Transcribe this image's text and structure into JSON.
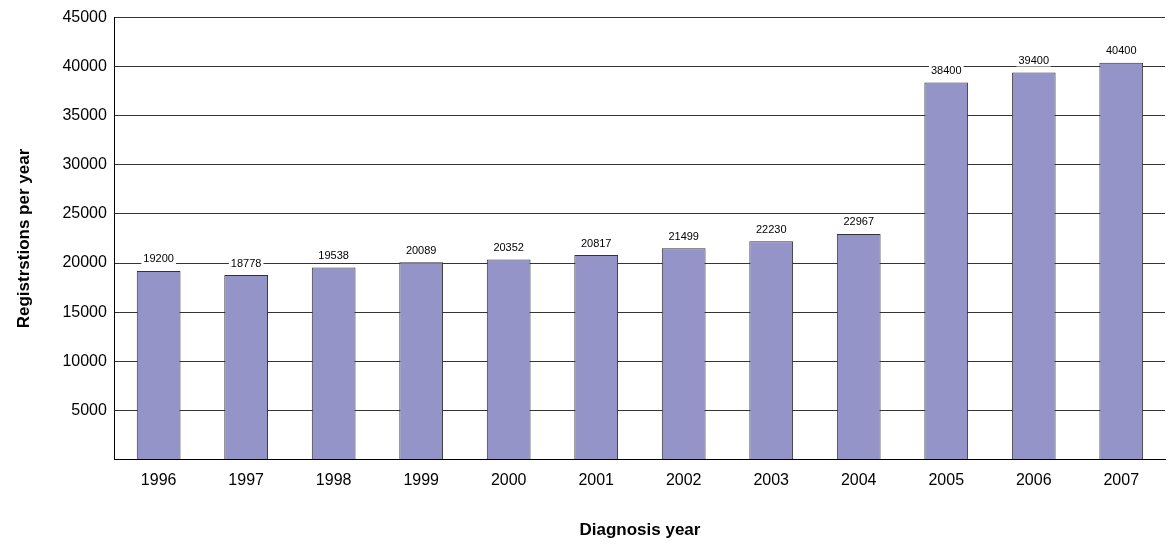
{
  "chart_data": {
    "type": "bar",
    "xlabel": "Diagnosis year",
    "ylabel": "Registrstions per year",
    "categories": [
      "1996",
      "1997",
      "1998",
      "1999",
      "2000",
      "2001",
      "2002",
      "2003",
      "2004",
      "2005",
      "2006",
      "2007"
    ],
    "values": [
      19200,
      18778,
      19538,
      20089,
      20352,
      20817,
      21499,
      22230,
      22967,
      38400,
      39400,
      40400
    ],
    "color": "#9494c8",
    "ylim": [
      0,
      45000
    ],
    "yticks": [
      {
        "value": 0,
        "label": null
      },
      5000,
      10000,
      15000,
      20000,
      25000,
      30000,
      35000,
      40000,
      45000
    ],
    "grid": "y",
    "data_labels": true,
    "legend": false
  }
}
